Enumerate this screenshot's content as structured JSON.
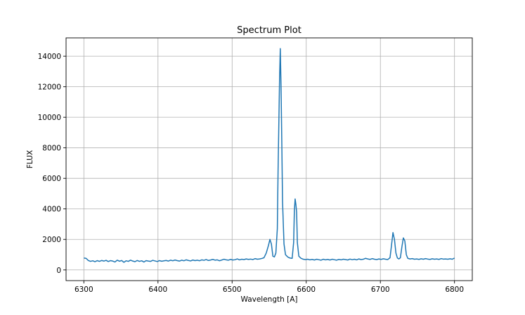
{
  "chart_data": {
    "type": "line",
    "title": "Spectrum Plot",
    "xlabel": "Wavelength [A]",
    "ylabel": "FLUX",
    "xlim": [
      6276,
      6824
    ],
    "ylim": [
      -700,
      15200
    ],
    "xticks": [
      6300,
      6400,
      6500,
      6600,
      6700,
      6800
    ],
    "yticks": [
      0,
      2000,
      4000,
      6000,
      8000,
      10000,
      12000,
      14000
    ],
    "grid": true,
    "legend": "none",
    "series": [
      {
        "color": "#1f77b4",
        "points": [
          [
            6300,
            780
          ],
          [
            6303,
            760
          ],
          [
            6306,
            620
          ],
          [
            6309,
            560
          ],
          [
            6312,
            600
          ],
          [
            6315,
            540
          ],
          [
            6318,
            610
          ],
          [
            6321,
            560
          ],
          [
            6324,
            620
          ],
          [
            6327,
            580
          ],
          [
            6330,
            630
          ],
          [
            6333,
            550
          ],
          [
            6336,
            610
          ],
          [
            6339,
            580
          ],
          [
            6342,
            520
          ],
          [
            6345,
            640
          ],
          [
            6348,
            570
          ],
          [
            6351,
            620
          ],
          [
            6354,
            500
          ],
          [
            6357,
            600
          ],
          [
            6360,
            560
          ],
          [
            6363,
            640
          ],
          [
            6366,
            580
          ],
          [
            6369,
            540
          ],
          [
            6372,
            620
          ],
          [
            6375,
            560
          ],
          [
            6378,
            600
          ],
          [
            6381,
            520
          ],
          [
            6384,
            610
          ],
          [
            6387,
            580
          ],
          [
            6390,
            560
          ],
          [
            6393,
            630
          ],
          [
            6396,
            590
          ],
          [
            6399,
            550
          ],
          [
            6402,
            610
          ],
          [
            6405,
            570
          ],
          [
            6408,
            600
          ],
          [
            6411,
            620
          ],
          [
            6414,
            580
          ],
          [
            6417,
            640
          ],
          [
            6420,
            600
          ],
          [
            6423,
            650
          ],
          [
            6426,
            610
          ],
          [
            6429,
            580
          ],
          [
            6432,
            640
          ],
          [
            6435,
            600
          ],
          [
            6438,
            660
          ],
          [
            6441,
            620
          ],
          [
            6444,
            590
          ],
          [
            6447,
            650
          ],
          [
            6450,
            610
          ],
          [
            6453,
            640
          ],
          [
            6456,
            600
          ],
          [
            6459,
            660
          ],
          [
            6462,
            630
          ],
          [
            6465,
            680
          ],
          [
            6468,
            620
          ],
          [
            6471,
            650
          ],
          [
            6474,
            690
          ],
          [
            6477,
            640
          ],
          [
            6480,
            660
          ],
          [
            6483,
            600
          ],
          [
            6486,
            650
          ],
          [
            6489,
            700
          ],
          [
            6492,
            660
          ],
          [
            6495,
            640
          ],
          [
            6498,
            690
          ],
          [
            6501,
            650
          ],
          [
            6504,
            670
          ],
          [
            6507,
            720
          ],
          [
            6510,
            660
          ],
          [
            6513,
            700
          ],
          [
            6516,
            680
          ],
          [
            6519,
            720
          ],
          [
            6522,
            690
          ],
          [
            6525,
            710
          ],
          [
            6528,
            680
          ],
          [
            6531,
            740
          ],
          [
            6534,
            700
          ],
          [
            6537,
            720
          ],
          [
            6540,
            750
          ],
          [
            6543,
            800
          ],
          [
            6546,
            1100
          ],
          [
            6549,
            1600
          ],
          [
            6551,
            2000
          ],
          [
            6553,
            1700
          ],
          [
            6555,
            900
          ],
          [
            6557,
            850
          ],
          [
            6559,
            1100
          ],
          [
            6561,
            2700
          ],
          [
            6562,
            6500
          ],
          [
            6563,
            9500
          ],
          [
            6564,
            12500
          ],
          [
            6565,
            14500
          ],
          [
            6566,
            12000
          ],
          [
            6567,
            8500
          ],
          [
            6568,
            4500
          ],
          [
            6570,
            1700
          ],
          [
            6572,
            1000
          ],
          [
            6575,
            850
          ],
          [
            6578,
            780
          ],
          [
            6581,
            760
          ],
          [
            6583,
            1800
          ],
          [
            6584,
            3900
          ],
          [
            6585,
            4650
          ],
          [
            6586,
            4300
          ],
          [
            6587,
            3800
          ],
          [
            6588,
            1800
          ],
          [
            6590,
            900
          ],
          [
            6593,
            760
          ],
          [
            6596,
            700
          ],
          [
            6599,
            680
          ],
          [
            6602,
            700
          ],
          [
            6605,
            660
          ],
          [
            6608,
            690
          ],
          [
            6611,
            650
          ],
          [
            6614,
            700
          ],
          [
            6617,
            670
          ],
          [
            6620,
            640
          ],
          [
            6623,
            700
          ],
          [
            6626,
            660
          ],
          [
            6629,
            690
          ],
          [
            6632,
            650
          ],
          [
            6635,
            700
          ],
          [
            6638,
            670
          ],
          [
            6641,
            640
          ],
          [
            6644,
            690
          ],
          [
            6647,
            660
          ],
          [
            6650,
            700
          ],
          [
            6653,
            680
          ],
          [
            6656,
            650
          ],
          [
            6659,
            710
          ],
          [
            6662,
            670
          ],
          [
            6665,
            700
          ],
          [
            6668,
            660
          ],
          [
            6671,
            720
          ],
          [
            6674,
            680
          ],
          [
            6677,
            700
          ],
          [
            6680,
            760
          ],
          [
            6683,
            720
          ],
          [
            6686,
            690
          ],
          [
            6689,
            740
          ],
          [
            6692,
            700
          ],
          [
            6695,
            680
          ],
          [
            6698,
            720
          ],
          [
            6701,
            690
          ],
          [
            6704,
            730
          ],
          [
            6707,
            700
          ],
          [
            6710,
            680
          ],
          [
            6713,
            800
          ],
          [
            6715,
            1600
          ],
          [
            6717,
            2450
          ],
          [
            6719,
            2000
          ],
          [
            6721,
            1100
          ],
          [
            6723,
            780
          ],
          [
            6725,
            720
          ],
          [
            6727,
            800
          ],
          [
            6729,
            1500
          ],
          [
            6731,
            2100
          ],
          [
            6733,
            1900
          ],
          [
            6735,
            1000
          ],
          [
            6737,
            760
          ],
          [
            6740,
            720
          ],
          [
            6743,
            740
          ],
          [
            6746,
            700
          ],
          [
            6749,
            720
          ],
          [
            6752,
            690
          ],
          [
            6755,
            730
          ],
          [
            6758,
            700
          ],
          [
            6761,
            740
          ],
          [
            6764,
            710
          ],
          [
            6767,
            690
          ],
          [
            6770,
            730
          ],
          [
            6773,
            700
          ],
          [
            6776,
            720
          ],
          [
            6779,
            690
          ],
          [
            6782,
            740
          ],
          [
            6785,
            710
          ],
          [
            6788,
            720
          ],
          [
            6791,
            700
          ],
          [
            6794,
            730
          ],
          [
            6797,
            700
          ],
          [
            6800,
            780
          ]
        ]
      }
    ]
  }
}
